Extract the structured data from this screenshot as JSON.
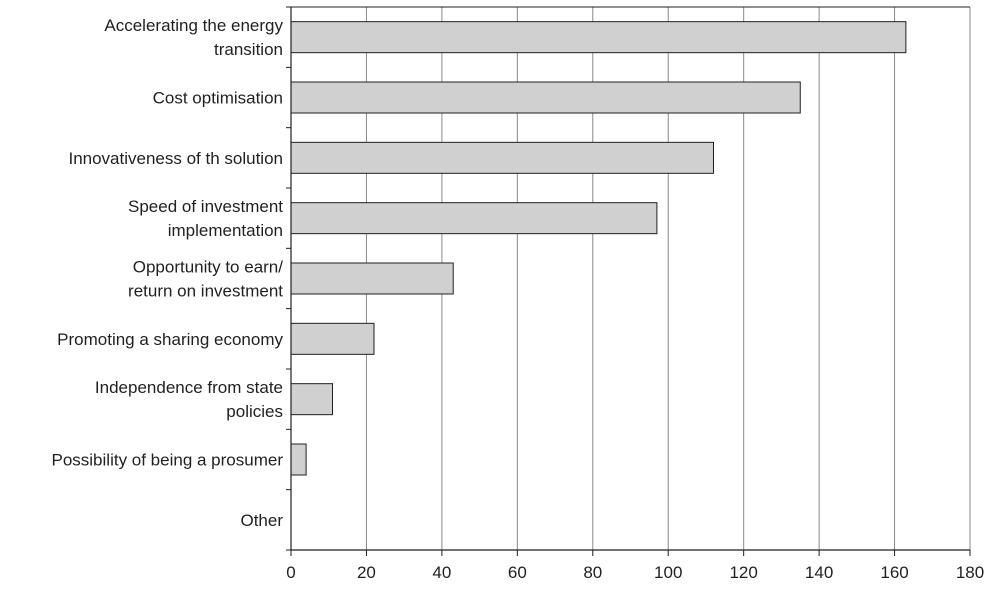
{
  "chart_data": {
    "type": "bar",
    "orientation": "horizontal",
    "title": "",
    "xlabel": "",
    "ylabel": "",
    "xlim": [
      0,
      180
    ],
    "x_ticks": [
      0,
      20,
      40,
      60,
      80,
      100,
      120,
      140,
      160,
      180
    ],
    "grid": "vertical",
    "legend": "none",
    "bar_color": "#d0d0d0",
    "bar_edge_color": "#231f20",
    "categories": [
      [
        "Accelerating the energy",
        "transition"
      ],
      [
        "Cost optimisation"
      ],
      [
        "Innovativeness of th solution"
      ],
      [
        "Speed of investment",
        "implementation"
      ],
      [
        "Opportunity to earn/",
        "return on investment"
      ],
      [
        "Promoting a sharing economy"
      ],
      [
        "Independence from state",
        "policies"
      ],
      [
        "Possibility of being a prosumer"
      ],
      [
        "Other"
      ]
    ],
    "values": [
      163,
      135,
      112,
      97,
      43,
      22,
      11,
      4,
      0
    ]
  }
}
